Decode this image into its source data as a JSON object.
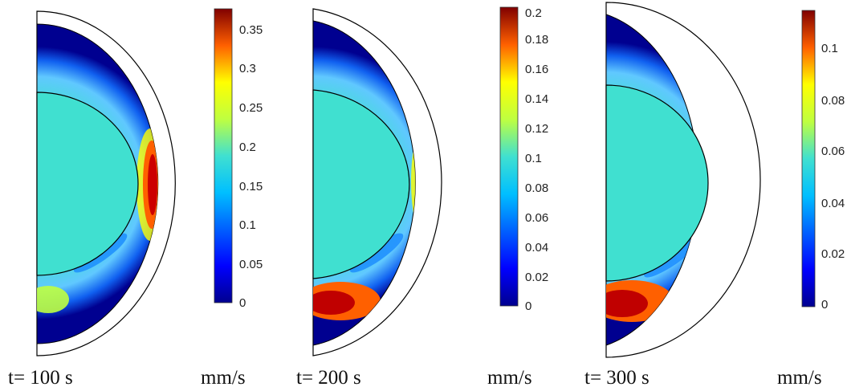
{
  "panels": [
    {
      "time_label": "t= 100 s",
      "unit_label": "mm/s",
      "ticks": [
        "0.35",
        "0.3",
        "0.25",
        "0.2",
        "0.15",
        "0.1",
        "0.05",
        "0"
      ]
    },
    {
      "time_label": "t= 200 s",
      "unit_label": "mm/s",
      "ticks": [
        "0.2",
        "0.18",
        "0.16",
        "0.14",
        "0.12",
        "0.1",
        "0.08",
        "0.06",
        "0.04",
        "0.02",
        "0"
      ]
    },
    {
      "time_label": "t= 300 s",
      "unit_label": "mm/s",
      "ticks": [
        "0.1",
        "0.08",
        "0.06",
        "0.04",
        "0.02",
        "0"
      ]
    }
  ],
  "colormap": {
    "name": "jet",
    "stops": [
      "#00008f",
      "#0000ff",
      "#00bfff",
      "#40e0d0",
      "#7fff7f",
      "#ffff00",
      "#ff8000",
      "#ff0000",
      "#800000"
    ]
  }
}
